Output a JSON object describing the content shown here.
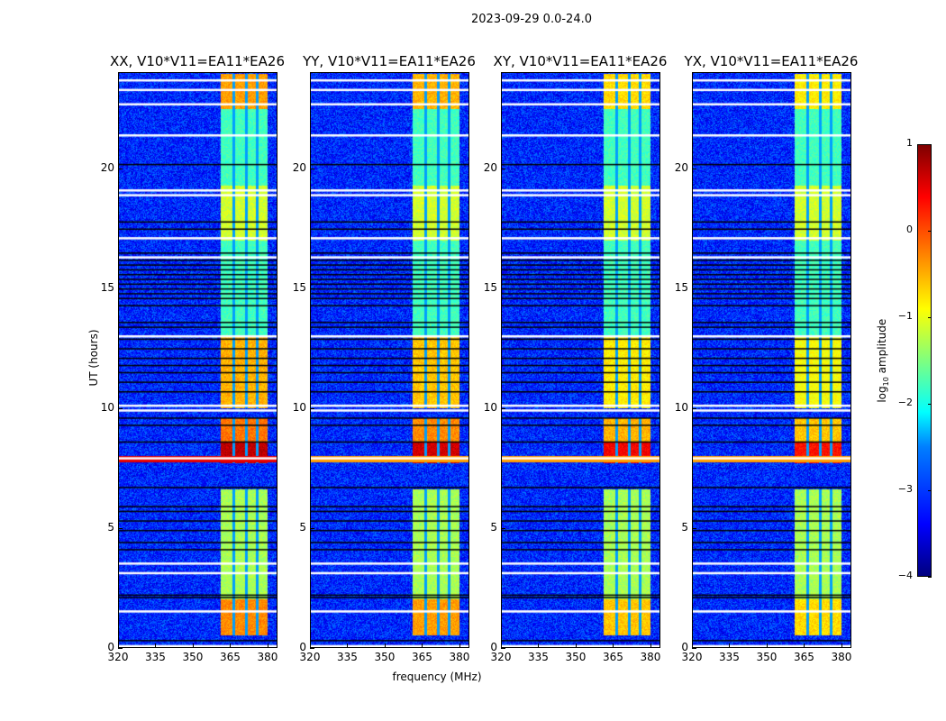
{
  "suptitle": "2023-09-29 0.0-24.0",
  "chart_data": {
    "type": "heatmap",
    "xlabel": "frequency (MHz)",
    "ylabel": "UT (hours)",
    "xlim": [
      320,
      384
    ],
    "ylim": [
      0,
      24
    ],
    "xticks": [
      "320",
      "335",
      "350",
      "365",
      "380"
    ],
    "xtick_values": [
      320,
      335,
      350,
      365,
      380
    ],
    "yticks": [
      "0",
      "5",
      "10",
      "15",
      "20"
    ],
    "ytick_values": [
      0,
      5,
      10,
      15,
      20
    ],
    "colorbar": {
      "label_main": "log",
      "label_sub": "10",
      "label_rest": " amplitude",
      "range": [
        -4,
        1
      ],
      "ticks": [
        "1",
        "0",
        "−1",
        "−2",
        "−3",
        "−4"
      ],
      "tick_values": [
        1,
        0,
        -1,
        -2,
        -3,
        -4
      ]
    },
    "background_level": -3.2,
    "rfi_band_mhz": [
      361,
      380
    ],
    "rfi_subband_gaps_mhz": [
      366.5,
      371.5,
      376
    ],
    "rfi_levels": [
      {
        "hours": [
          0.5,
          2.0
        ],
        "level": -0.6
      },
      {
        "hours": [
          2.0,
          6.6
        ],
        "level": -1.3
      },
      {
        "hours": [
          7.7,
          8.6
        ],
        "level": 0.4
      },
      {
        "hours": [
          8.6,
          9.6
        ],
        "level": -0.5
      },
      {
        "hours": [
          10.0,
          13.0
        ],
        "level": -0.8
      },
      {
        "hours": [
          13.0,
          17.0
        ],
        "level": -1.8
      },
      {
        "hours": [
          17.0,
          19.3
        ],
        "level": -1.1
      },
      {
        "hours": [
          19.3,
          22.5
        ],
        "level": -1.8
      },
      {
        "hours": [
          22.5,
          24.0
        ],
        "level": -0.7
      }
    ],
    "broadband_event_hours": [
      7.75,
      8.0
    ],
    "flagged_hours_white": [
      0.05,
      1.5,
      3.1,
      3.5,
      7.9,
      9.9,
      10.1,
      13.0,
      16.3,
      17.1,
      18.9,
      19.1,
      21.4,
      22.7,
      23.3,
      23.7
    ],
    "gap_hours_black": [
      0.3,
      2.1,
      2.2,
      4.1,
      4.4,
      4.9,
      5.3,
      5.7,
      5.9,
      6.7,
      8.6,
      9.3,
      9.6,
      10.7,
      11.1,
      11.5,
      11.8,
      12.1,
      12.5,
      12.9,
      13.4,
      13.6,
      14.3,
      14.6,
      14.8,
      15.0,
      15.2,
      15.4,
      15.6,
      15.8,
      16.0,
      16.2,
      16.5,
      17.5,
      17.8,
      20.2
    ],
    "panels": [
      {
        "title": "XX, V10*V11=EA11*EA26",
        "gain": 0.3
      },
      {
        "title": "YY, V10*V11=EA11*EA26",
        "gain": 0.2
      },
      {
        "title": "XY, V10*V11=EA11*EA26",
        "gain": 0.0
      },
      {
        "title": "YX, V10*V11=EA11*EA26",
        "gain": -0.1
      }
    ]
  }
}
